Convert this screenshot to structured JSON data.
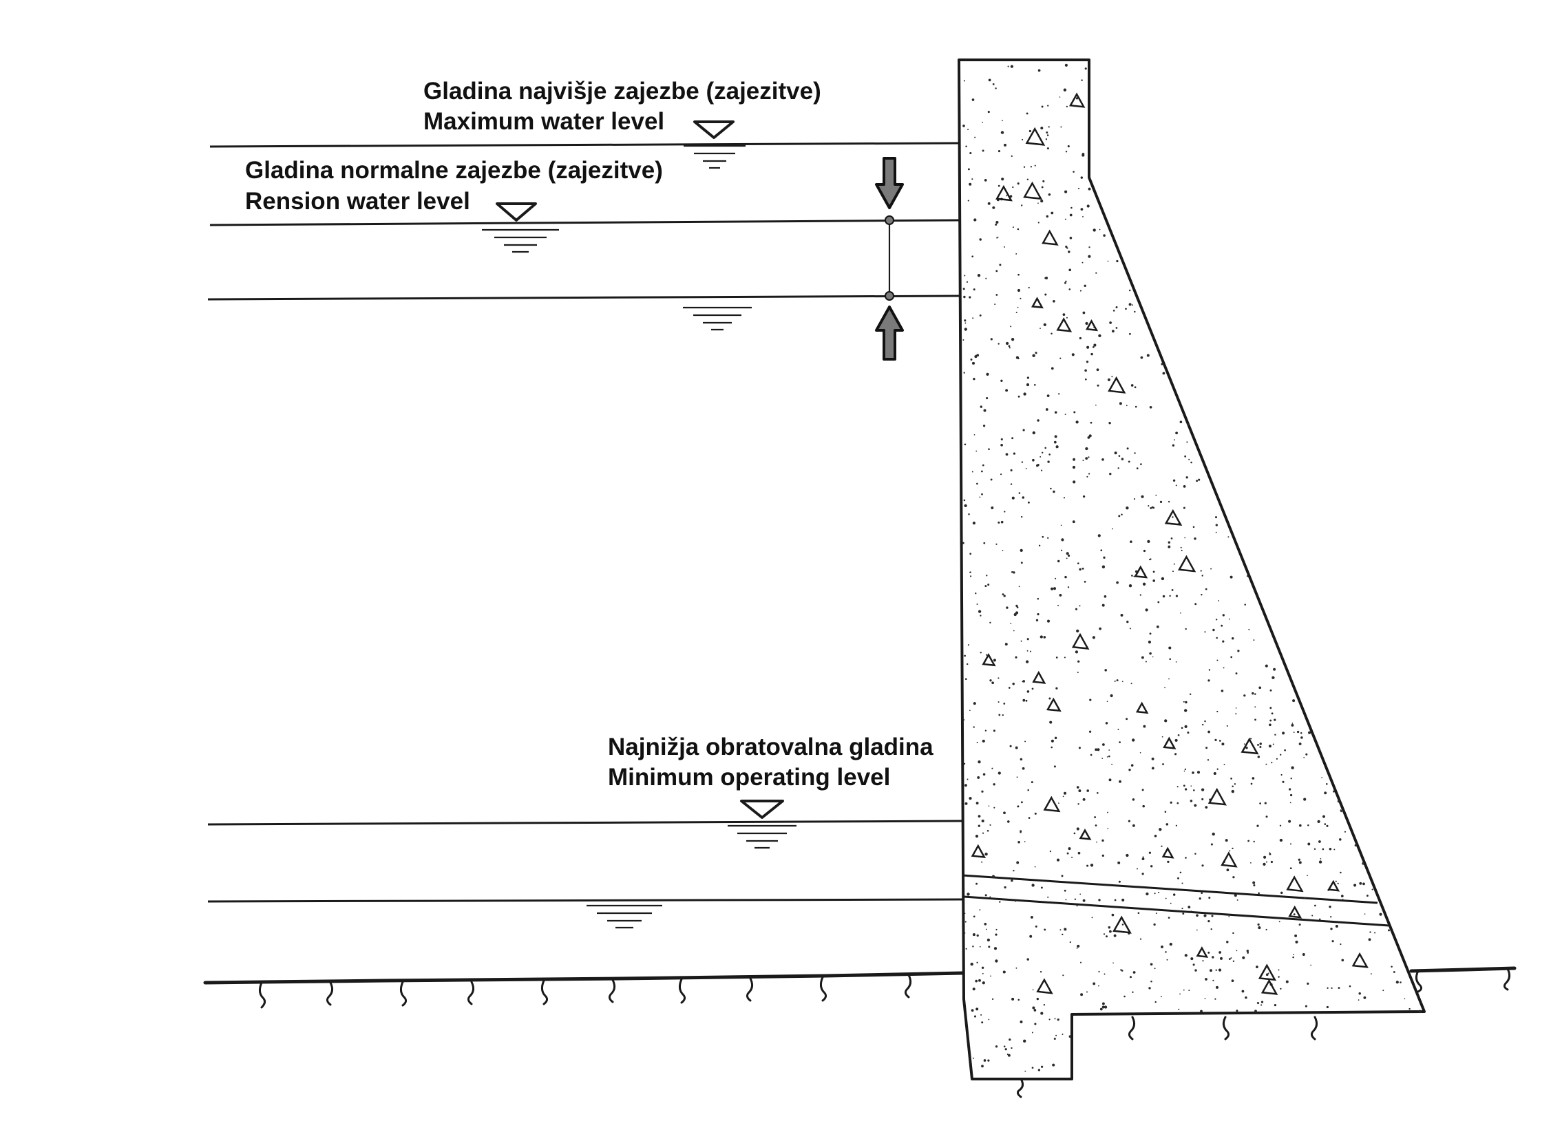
{
  "labels": {
    "max_level_sl": "Gladina najvišje zajezbe (zajezitve)",
    "max_level_en": "Maximum water level",
    "normal_level_sl": "Gladina normalne zajezbe (zajezitve)",
    "normal_level_en": "Rension water level",
    "min_level_sl": "Najnižja obratovalna gladina",
    "min_level_en": "Minimum operating level"
  },
  "colors": {
    "line": "#1a1a1a",
    "arrow_fill": "#7a7a7a",
    "background": "#ffffff"
  },
  "icons": [
    "water-level-triangle-icon",
    "water-surface-icon",
    "arrow-down-icon",
    "arrow-up-icon"
  ]
}
